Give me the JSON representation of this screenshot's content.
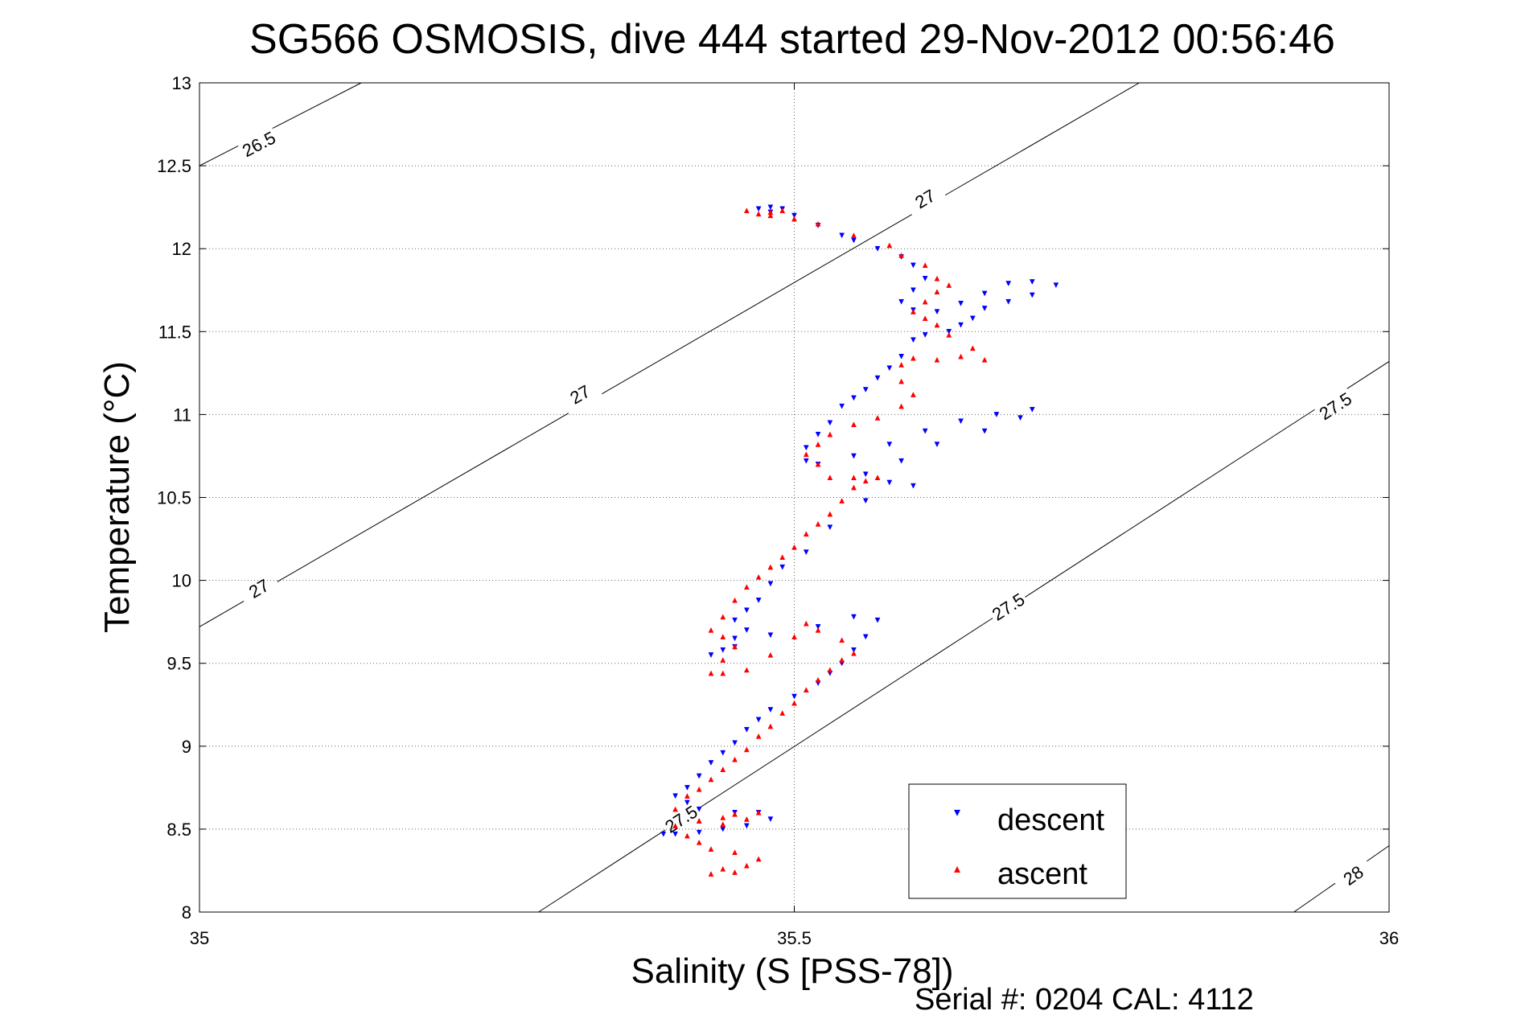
{
  "chart_data": {
    "type": "scatter",
    "title": "SG566 OSMOSIS, dive 444 started 29-Nov-2012 00:56:46",
    "xlabel": "Salinity (S [PSS-78])",
    "ylabel": "Temperature (°C)",
    "xlim": [
      35,
      36
    ],
    "ylim": [
      8,
      13
    ],
    "xticks": [
      35,
      35.5,
      36
    ],
    "xtick_labels": [
      "35",
      "35.5",
      "36"
    ],
    "yticks": [
      8,
      8.5,
      9,
      9.5,
      10,
      10.5,
      11,
      11.5,
      12,
      12.5,
      13
    ],
    "ytick_labels": [
      "8",
      "8.5",
      "9",
      "9.5",
      "10",
      "10.5",
      "11",
      "11.5",
      "12",
      "12.5",
      "13"
    ],
    "grid": true,
    "legend_position": "bottom-right",
    "footer": "Serial #: 0204  CAL: 4112",
    "density_contours": [
      {
        "label": "26.5",
        "points": [
          [
            35.0,
            12.5
          ],
          [
            35.136,
            13.0
          ]
        ],
        "label_at": [
          [
            35.05,
            12.63
          ]
        ]
      },
      {
        "label": "27",
        "points": [
          [
            35.0,
            9.72
          ],
          [
            35.79,
            13.0
          ]
        ],
        "label_at": [
          [
            35.05,
            9.95
          ],
          [
            35.32,
            11.12
          ],
          [
            35.61,
            12.3
          ]
        ]
      },
      {
        "label": "27.5",
        "points": [
          [
            35.285,
            8.0
          ],
          [
            36.0,
            11.32
          ]
        ],
        "label_at": [
          [
            35.405,
            8.56
          ],
          [
            35.68,
            9.84
          ],
          [
            35.955,
            11.05
          ]
        ]
      },
      {
        "label": "28",
        "points": [
          [
            35.92,
            8.0
          ],
          [
            36.0,
            8.4
          ]
        ],
        "label_at": [
          [
            35.97,
            8.22
          ]
        ]
      }
    ],
    "series": [
      {
        "name": "descent",
        "color": "#0000ff",
        "marker": "triangle-down",
        "points": [
          [
            35.47,
            12.24
          ],
          [
            35.48,
            12.25
          ],
          [
            35.49,
            12.24
          ],
          [
            35.48,
            12.22
          ],
          [
            35.5,
            12.2
          ],
          [
            35.52,
            12.14
          ],
          [
            35.54,
            12.08
          ],
          [
            35.55,
            12.05
          ],
          [
            35.57,
            12.0
          ],
          [
            35.59,
            11.95
          ],
          [
            35.6,
            11.9
          ],
          [
            35.61,
            11.82
          ],
          [
            35.6,
            11.75
          ],
          [
            35.59,
            11.68
          ],
          [
            35.6,
            11.63
          ],
          [
            35.62,
            11.62
          ],
          [
            35.64,
            11.67
          ],
          [
            35.66,
            11.73
          ],
          [
            35.68,
            11.79
          ],
          [
            35.7,
            11.8
          ],
          [
            35.72,
            11.78
          ],
          [
            35.7,
            11.72
          ],
          [
            35.68,
            11.68
          ],
          [
            35.66,
            11.64
          ],
          [
            35.65,
            11.58
          ],
          [
            35.64,
            11.54
          ],
          [
            35.63,
            11.5
          ],
          [
            35.61,
            11.48
          ],
          [
            35.6,
            11.45
          ],
          [
            35.59,
            11.35
          ],
          [
            35.58,
            11.28
          ],
          [
            35.57,
            11.22
          ],
          [
            35.56,
            11.15
          ],
          [
            35.55,
            11.1
          ],
          [
            35.54,
            11.05
          ],
          [
            35.53,
            10.95
          ],
          [
            35.52,
            10.88
          ],
          [
            35.51,
            10.8
          ],
          [
            35.51,
            10.72
          ],
          [
            35.52,
            10.7
          ],
          [
            35.55,
            10.75
          ],
          [
            35.58,
            10.82
          ],
          [
            35.61,
            10.9
          ],
          [
            35.64,
            10.96
          ],
          [
            35.67,
            11.0
          ],
          [
            35.7,
            11.03
          ],
          [
            35.69,
            10.98
          ],
          [
            35.66,
            10.9
          ],
          [
            35.62,
            10.82
          ],
          [
            35.59,
            10.72
          ],
          [
            35.56,
            10.64
          ],
          [
            35.58,
            10.59
          ],
          [
            35.6,
            10.57
          ],
          [
            35.56,
            10.48
          ],
          [
            35.53,
            10.32
          ],
          [
            35.51,
            10.17
          ],
          [
            35.49,
            10.08
          ],
          [
            35.48,
            9.98
          ],
          [
            35.47,
            9.88
          ],
          [
            35.46,
            9.82
          ],
          [
            35.45,
            9.76
          ],
          [
            35.46,
            9.7
          ],
          [
            35.45,
            9.65
          ],
          [
            35.44,
            9.58
          ],
          [
            35.43,
            9.55
          ],
          [
            35.45,
            9.6
          ],
          [
            35.48,
            9.67
          ],
          [
            35.52,
            9.72
          ],
          [
            35.55,
            9.78
          ],
          [
            35.57,
            9.76
          ],
          [
            35.56,
            9.66
          ],
          [
            35.55,
            9.58
          ],
          [
            35.54,
            9.5
          ],
          [
            35.53,
            9.44
          ],
          [
            35.52,
            9.38
          ],
          [
            35.5,
            9.3
          ],
          [
            35.48,
            9.22
          ],
          [
            35.47,
            9.16
          ],
          [
            35.46,
            9.1
          ],
          [
            35.45,
            9.02
          ],
          [
            35.44,
            8.96
          ],
          [
            35.43,
            8.9
          ],
          [
            35.42,
            8.82
          ],
          [
            35.41,
            8.75
          ],
          [
            35.4,
            8.7
          ],
          [
            35.41,
            8.66
          ],
          [
            35.42,
            8.62
          ],
          [
            35.45,
            8.6
          ],
          [
            35.47,
            8.6
          ],
          [
            35.48,
            8.56
          ],
          [
            35.46,
            8.52
          ],
          [
            35.44,
            8.5
          ],
          [
            35.42,
            8.48
          ],
          [
            35.4,
            8.47
          ],
          [
            35.39,
            8.47
          ]
        ]
      },
      {
        "name": "ascent",
        "color": "#ff0000",
        "marker": "triangle-up",
        "points": [
          [
            35.45,
            8.24
          ],
          [
            35.43,
            8.23
          ],
          [
            35.44,
            8.26
          ],
          [
            35.46,
            8.28
          ],
          [
            35.47,
            8.32
          ],
          [
            35.45,
            8.36
          ],
          [
            35.43,
            8.38
          ],
          [
            35.42,
            8.42
          ],
          [
            35.41,
            8.46
          ],
          [
            35.4,
            8.52
          ],
          [
            35.42,
            8.55
          ],
          [
            35.44,
            8.57
          ],
          [
            35.45,
            8.59
          ],
          [
            35.47,
            8.6
          ],
          [
            35.46,
            8.56
          ],
          [
            35.44,
            8.53
          ],
          [
            35.42,
            8.55
          ],
          [
            35.4,
            8.62
          ],
          [
            35.41,
            8.7
          ],
          [
            35.42,
            8.74
          ],
          [
            35.43,
            8.8
          ],
          [
            35.44,
            8.86
          ],
          [
            35.45,
            8.92
          ],
          [
            35.46,
            8.98
          ],
          [
            35.47,
            9.06
          ],
          [
            35.48,
            9.12
          ],
          [
            35.49,
            9.2
          ],
          [
            35.5,
            9.26
          ],
          [
            35.51,
            9.34
          ],
          [
            35.52,
            9.4
          ],
          [
            35.53,
            9.46
          ],
          [
            35.54,
            9.52
          ],
          [
            35.55,
            9.56
          ],
          [
            35.54,
            9.64
          ],
          [
            35.52,
            9.7
          ],
          [
            35.51,
            9.74
          ],
          [
            35.5,
            9.66
          ],
          [
            35.48,
            9.55
          ],
          [
            35.46,
            9.46
          ],
          [
            35.44,
            9.44
          ],
          [
            35.43,
            9.44
          ],
          [
            35.44,
            9.52
          ],
          [
            35.45,
            9.6
          ],
          [
            35.44,
            9.66
          ],
          [
            35.43,
            9.7
          ],
          [
            35.44,
            9.78
          ],
          [
            35.45,
            9.88
          ],
          [
            35.46,
            9.96
          ],
          [
            35.47,
            10.02
          ],
          [
            35.48,
            10.08
          ],
          [
            35.49,
            10.14
          ],
          [
            35.5,
            10.2
          ],
          [
            35.51,
            10.28
          ],
          [
            35.52,
            10.34
          ],
          [
            35.53,
            10.4
          ],
          [
            35.54,
            10.48
          ],
          [
            35.55,
            10.56
          ],
          [
            35.56,
            10.6
          ],
          [
            35.57,
            10.62
          ],
          [
            35.55,
            10.62
          ],
          [
            35.53,
            10.62
          ],
          [
            35.52,
            10.7
          ],
          [
            35.51,
            10.76
          ],
          [
            35.52,
            10.82
          ],
          [
            35.53,
            10.88
          ],
          [
            35.55,
            10.94
          ],
          [
            35.57,
            10.98
          ],
          [
            35.59,
            11.05
          ],
          [
            35.6,
            11.12
          ],
          [
            35.59,
            11.2
          ],
          [
            35.59,
            11.3
          ],
          [
            35.6,
            11.34
          ],
          [
            35.62,
            11.33
          ],
          [
            35.64,
            11.35
          ],
          [
            35.66,
            11.33
          ],
          [
            35.65,
            11.4
          ],
          [
            35.63,
            11.48
          ],
          [
            35.62,
            11.54
          ],
          [
            35.61,
            11.58
          ],
          [
            35.6,
            11.62
          ],
          [
            35.61,
            11.68
          ],
          [
            35.62,
            11.74
          ],
          [
            35.63,
            11.78
          ],
          [
            35.62,
            11.82
          ],
          [
            35.61,
            11.9
          ],
          [
            35.59,
            11.96
          ],
          [
            35.58,
            12.02
          ],
          [
            35.55,
            12.08
          ],
          [
            35.52,
            12.15
          ],
          [
            35.5,
            12.18
          ],
          [
            35.48,
            12.2
          ],
          [
            35.47,
            12.21
          ],
          [
            35.46,
            12.23
          ],
          [
            35.48,
            12.22
          ],
          [
            35.49,
            12.23
          ]
        ]
      }
    ]
  }
}
